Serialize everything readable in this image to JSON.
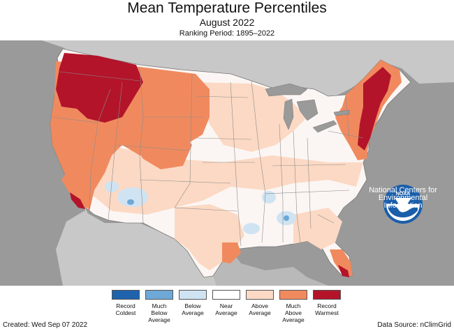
{
  "header": {
    "title": "Mean Temperature Percentiles",
    "subtitle": "August 2022",
    "ranking_period": "Ranking Period: 1895–2022"
  },
  "logo": {
    "emblem_text": "NOAA",
    "lines": [
      "National Centers for",
      "Environmental",
      "Information"
    ]
  },
  "legend": {
    "items": [
      {
        "lines": [
          "Record",
          "Coldest"
        ],
        "color": "#1f63ad"
      },
      {
        "lines": [
          "Much",
          "Below",
          "Average"
        ],
        "color": "#6ea8d6"
      },
      {
        "lines": [
          "Below",
          "Average"
        ],
        "color": "#cfe3f2"
      },
      {
        "lines": [
          "Near",
          "Average"
        ],
        "color": "#ffffff"
      },
      {
        "lines": [
          "Above",
          "Average"
        ],
        "color": "#fcd9c4"
      },
      {
        "lines": [
          "Much",
          "Above",
          "Average"
        ],
        "color": "#f08a5e"
      },
      {
        "lines": [
          "Record",
          "Warmest"
        ],
        "color": "#b3142a"
      }
    ]
  },
  "footer": {
    "created": "Created: Wed Sep 07 2022",
    "source": "Data Source: nClimGrid"
  },
  "colors": {
    "background_land": "#c8c8c8",
    "ocean": "#9a9a9a",
    "lakes": "#9a9a9a",
    "state_border": "#8c8c8c"
  }
}
